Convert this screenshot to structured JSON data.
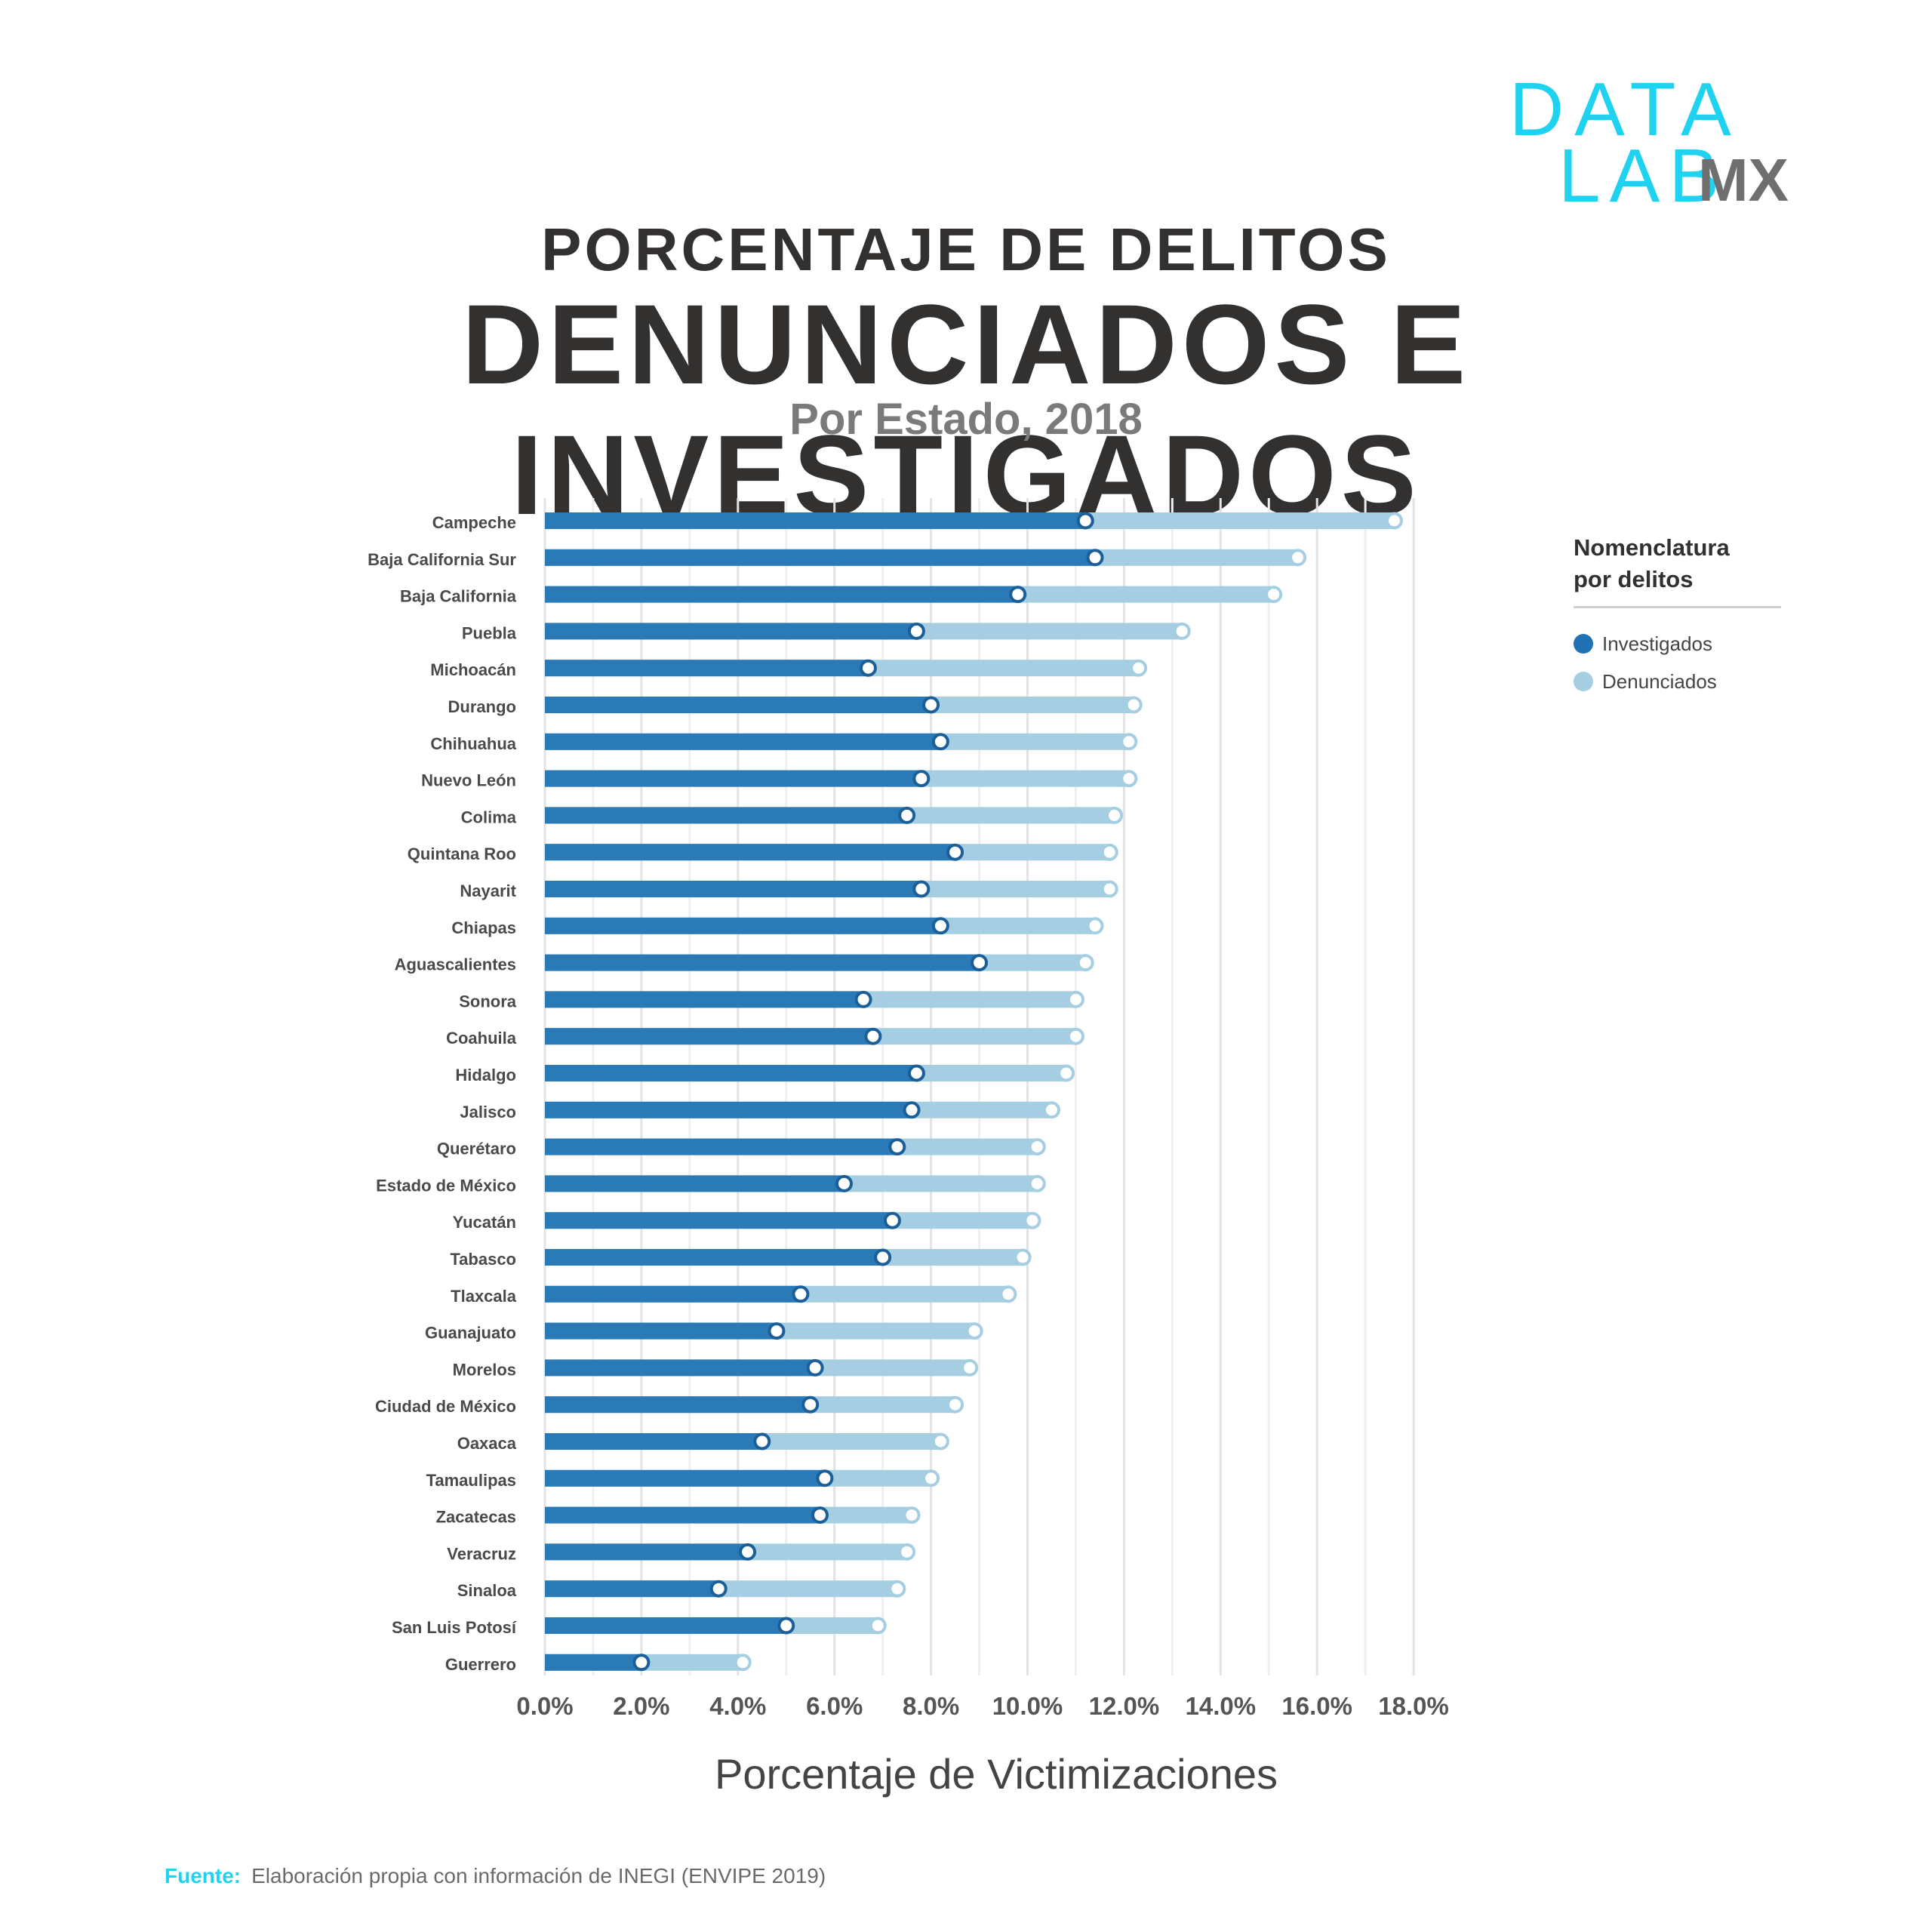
{
  "logo": {
    "line1": "DATA",
    "line2": "LAB",
    "line3": "MX"
  },
  "title_line1": "PORCENTAJE DE DELITOS",
  "title_line2": "DENUNCIADOS E INVESTIGADOS",
  "subtitle": "Por Estado, 2018",
  "legend": {
    "title_line1": "Nomenclatura",
    "title_line2": "por delitos",
    "items": [
      {
        "label": "Investigados",
        "color": "#2171b5"
      },
      {
        "label": "Denunciados",
        "color": "#a6cee3"
      }
    ]
  },
  "source": {
    "label": "Fuente:",
    "text": "Elaboración propia con información de INEGI (ENVIPE 2019)"
  },
  "chart_data": {
    "type": "bar",
    "orientation": "horizontal",
    "xlabel": "Porcentaje de Victimizaciones",
    "xlim": [
      0,
      18
    ],
    "x_ticks": [
      "0.0%",
      "2.0%",
      "4.0%",
      "6.0%",
      "8.0%",
      "10.0%",
      "12.0%",
      "14.0%",
      "16.0%",
      "18.0%"
    ],
    "categories": [
      "Campeche",
      "Baja California Sur",
      "Baja California",
      "Puebla",
      "Michoacán",
      "Durango",
      "Chihuahua",
      "Nuevo León",
      "Colima",
      "Quintana Roo",
      "Nayarit",
      "Chiapas",
      "Aguascalientes",
      "Sonora",
      "Coahuila",
      "Hidalgo",
      "Jalisco",
      "Querétaro",
      "Estado de México",
      "Yucatán",
      "Tabasco",
      "Tlaxcala",
      "Guanajuato",
      "Morelos",
      "Ciudad de México",
      "Oaxaca",
      "Tamaulipas",
      "Zacatecas",
      "Veracruz",
      "Sinaloa",
      "San Luis Potosí",
      "Guerrero"
    ],
    "series": [
      {
        "name": "Investigados",
        "color": "#2171b5",
        "values": [
          11.2,
          11.4,
          9.8,
          7.7,
          6.7,
          8.0,
          8.2,
          7.8,
          7.5,
          8.5,
          7.8,
          8.2,
          9.0,
          6.6,
          6.8,
          7.7,
          7.6,
          7.3,
          6.2,
          7.2,
          7.0,
          5.3,
          4.8,
          5.6,
          5.5,
          4.5,
          5.8,
          5.7,
          4.2,
          3.6,
          5.0,
          2.0
        ]
      },
      {
        "name": "Denunciados",
        "color": "#a6cee3",
        "values": [
          17.6,
          15.6,
          15.1,
          13.2,
          12.3,
          12.2,
          12.1,
          12.1,
          11.8,
          11.7,
          11.7,
          11.4,
          11.2,
          11.0,
          11.0,
          10.8,
          10.5,
          10.2,
          10.2,
          10.1,
          9.9,
          9.6,
          8.9,
          8.8,
          8.5,
          8.2,
          8.0,
          7.6,
          7.5,
          7.3,
          6.9,
          4.1
        ]
      }
    ],
    "grid": true,
    "legend_position": "top-right"
  }
}
